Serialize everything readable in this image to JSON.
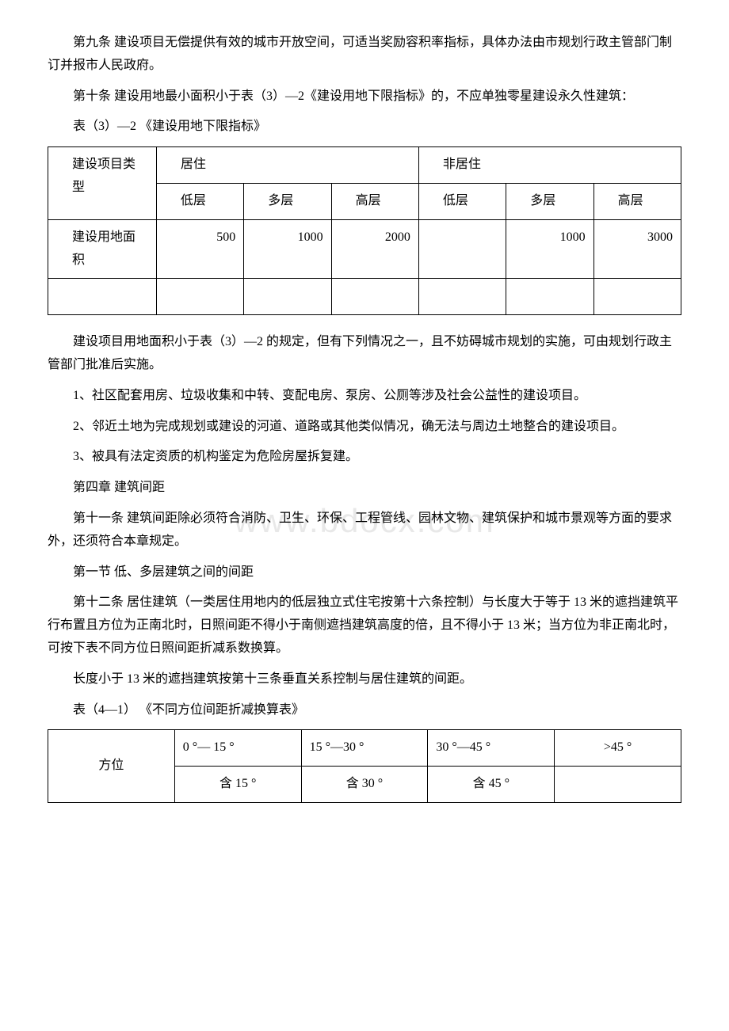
{
  "paragraphs": {
    "p1": "第九条 建设项目无偿提供有效的城市开放空间，可适当奖励容积率指标，具体办法由市规划行政主管部门制订并报市人民政府。",
    "p2": "第十条 建设用地最小面积小于表（3）—2《建设用地下限指标》的，不应单独零星建设永久性建筑：",
    "p3": "表（3）—2 《建设用地下限指标》",
    "p4": "建设项目用地面积小于表（3）—2 的规定，但有下列情况之一，且不妨碍城市规划的实施，可由规划行政主管部门批准后实施。",
    "p5": "1、社区配套用房、垃圾收集和中转、变配电房、泵房、公厕等涉及社会公益性的建设项目。",
    "p6": "2、邻近土地为完成规划或建设的河道、道路或其他类似情况，确无法与周边土地整合的建设项目。",
    "p7": "3、被具有法定资质的机构鉴定为危险房屋拆复建。",
    "p8": "第四章 建筑间距",
    "p9": "第十一条 建筑间距除必须符合消防、卫生、环保、工程管线、园林文物、建筑保护和城市景观等方面的要求外，还须符合本章规定。",
    "p10": "第一节 低、多层建筑之间的间距",
    "p11": "第十二条 居住建筑（一类居住用地内的低层独立式住宅按第十六条控制）与长度大于等于 13 米的遮挡建筑平行布置且方位为正南北时，日照间距不得小于南侧遮挡建筑高度的倍，且不得小于 13 米；当方位为非正南北时，可按下表不同方位日照间距折减系数换算。",
    "p12": "长度小于 13 米的遮挡建筑按第十三条垂直关系控制与居住建筑的间距。",
    "p13": "表（4—1） 《不同方位间距折减换算表》"
  },
  "table1": {
    "row1_header": "建设项目类型",
    "row1_group1": "居住",
    "row1_group2": "非居住",
    "row2_c1": "低层",
    "row2_c2": "多层",
    "row2_c3": "高层",
    "row2_c4": "低层",
    "row2_c5": "多层",
    "row2_c6": "高层",
    "row3_header": "建设用地面积",
    "row3_c1": "500",
    "row3_c2": "1000",
    "row3_c3": "2000",
    "row3_c4": "",
    "row3_c5": "1000",
    "row3_c6": "3000"
  },
  "table2": {
    "row1_c1": "方位",
    "row1_c2": "0 °— 15 °",
    "row1_c3": "15 °—30 °",
    "row1_c4": "30 °—45 °",
    "row1_c5": ">45 °",
    "row2_c2": "含 15 °",
    "row2_c3": "含 30 °",
    "row2_c4": "含 45 °"
  },
  "watermark": "www.bdocx.com"
}
